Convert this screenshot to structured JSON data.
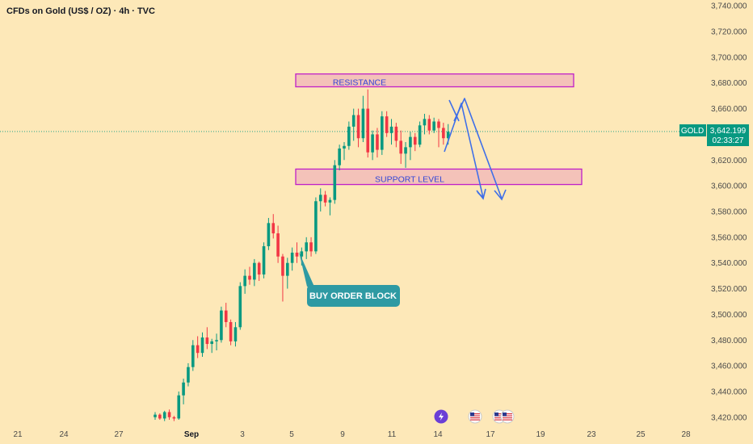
{
  "header": {
    "title": "CFDs on Gold (US$ / OZ) · 4h · TVC"
  },
  "price_tag": {
    "symbol": "GOLD",
    "price": "3,642.199",
    "countdown": "02:33:27"
  },
  "annotations": {
    "resistance": "RESISTANCE",
    "support": "SUPPORT LEVEL",
    "order_block": "BUY ORDER BLOCK"
  },
  "colors": {
    "up": "#089981",
    "down": "#f23645",
    "zone_fill": "#f4c2b9",
    "zone_border": "#c020c8",
    "callout": "#2e9aa3",
    "arrow": "#3f6fe8"
  },
  "chart_data": {
    "type": "candlestick",
    "title": "CFDs on Gold (US$ / OZ) · 4h · TVC",
    "y_ticks": [
      3420,
      3440,
      3460,
      3480,
      3500,
      3520,
      3540,
      3560,
      3580,
      3600,
      3620,
      3640,
      3660,
      3680,
      3700,
      3720,
      3740
    ],
    "y_tick_labels": [
      "3,420.000",
      "3,440.000",
      "3,460.000",
      "3,480.000",
      "3,500.000",
      "3,520.000",
      "3,540.000",
      "3,560.000",
      "3,580.000",
      "3,600.000",
      "3,620.000",
      "3,640.000",
      "3,660.000",
      "3,680.000",
      "3,700.000",
      "3,720.000",
      "3,740.000"
    ],
    "ylim": [
      3418,
      3742
    ],
    "x_labels": [
      "21",
      "24",
      "27",
      "Sep",
      "3",
      "5",
      "9",
      "11",
      "14",
      "17",
      "19",
      "23",
      "25",
      "28"
    ],
    "current_price": 3642.199,
    "resistance_zone": [
      3677,
      3687
    ],
    "support_zone": [
      3601,
      3613
    ],
    "candles": [
      [
        3420,
        3424,
        3418,
        3422
      ],
      [
        3422,
        3423,
        3418,
        3419
      ],
      [
        3419,
        3425,
        3417,
        3424
      ],
      [
        3424,
        3426,
        3418,
        3420
      ],
      [
        3420,
        3421,
        3417,
        3419
      ],
      [
        3419,
        3440,
        3418,
        3437
      ],
      [
        3437,
        3450,
        3430,
        3447
      ],
      [
        3447,
        3462,
        3444,
        3459
      ],
      [
        3459,
        3480,
        3456,
        3476
      ],
      [
        3476,
        3483,
        3466,
        3470
      ],
      [
        3470,
        3486,
        3467,
        3482
      ],
      [
        3482,
        3490,
        3473,
        3477
      ],
      [
        3477,
        3481,
        3470,
        3479
      ],
      [
        3479,
        3485,
        3472,
        3480
      ],
      [
        3480,
        3506,
        3478,
        3503
      ],
      [
        3503,
        3509,
        3490,
        3494
      ],
      [
        3494,
        3496,
        3476,
        3479
      ],
      [
        3479,
        3494,
        3475,
        3490
      ],
      [
        3490,
        3525,
        3488,
        3522
      ],
      [
        3522,
        3535,
        3516,
        3530
      ],
      [
        3530,
        3537,
        3523,
        3527
      ],
      [
        3527,
        3543,
        3522,
        3540
      ],
      [
        3540,
        3541,
        3526,
        3531
      ],
      [
        3531,
        3556,
        3528,
        3553
      ],
      [
        3553,
        3575,
        3550,
        3571
      ],
      [
        3571,
        3578,
        3559,
        3563
      ],
      [
        3563,
        3569,
        3540,
        3545
      ],
      [
        3545,
        3547,
        3510,
        3530
      ],
      [
        3530,
        3544,
        3520,
        3540
      ],
      [
        3540,
        3552,
        3534,
        3548
      ],
      [
        3548,
        3556,
        3540,
        3545
      ],
      [
        3545,
        3552,
        3538,
        3549
      ],
      [
        3549,
        3560,
        3543,
        3556
      ],
      [
        3556,
        3560,
        3545,
        3549
      ],
      [
        3549,
        3591,
        3547,
        3588
      ],
      [
        3588,
        3598,
        3580,
        3593
      ],
      [
        3593,
        3596,
        3584,
        3587
      ],
      [
        3587,
        3591,
        3577,
        3589
      ],
      [
        3589,
        3620,
        3586,
        3616
      ],
      [
        3616,
        3632,
        3612,
        3629
      ],
      [
        3629,
        3634,
        3620,
        3631
      ],
      [
        3631,
        3650,
        3628,
        3646
      ],
      [
        3646,
        3660,
        3635,
        3655
      ],
      [
        3655,
        3660,
        3630,
        3637
      ],
      [
        3637,
        3670,
        3634,
        3660
      ],
      [
        3660,
        3675,
        3622,
        3626
      ],
      [
        3626,
        3643,
        3620,
        3640
      ],
      [
        3640,
        3645,
        3622,
        3628
      ],
      [
        3628,
        3658,
        3624,
        3654
      ],
      [
        3654,
        3658,
        3638,
        3641
      ],
      [
        3641,
        3652,
        3632,
        3646
      ],
      [
        3646,
        3649,
        3630,
        3635
      ],
      [
        3635,
        3643,
        3617,
        3625
      ],
      [
        3625,
        3634,
        3614,
        3630
      ],
      [
        3630,
        3642,
        3620,
        3638
      ],
      [
        3638,
        3641,
        3627,
        3632
      ],
      [
        3632,
        3650,
        3630,
        3647
      ],
      [
        3647,
        3656,
        3640,
        3652
      ],
      [
        3652,
        3655,
        3640,
        3643
      ],
      [
        3643,
        3653,
        3641,
        3650
      ],
      [
        3650,
        3652,
        3630,
        3645
      ],
      [
        3645,
        3649,
        3632,
        3637
      ],
      [
        3637,
        3648,
        3632,
        3642
      ]
    ]
  }
}
